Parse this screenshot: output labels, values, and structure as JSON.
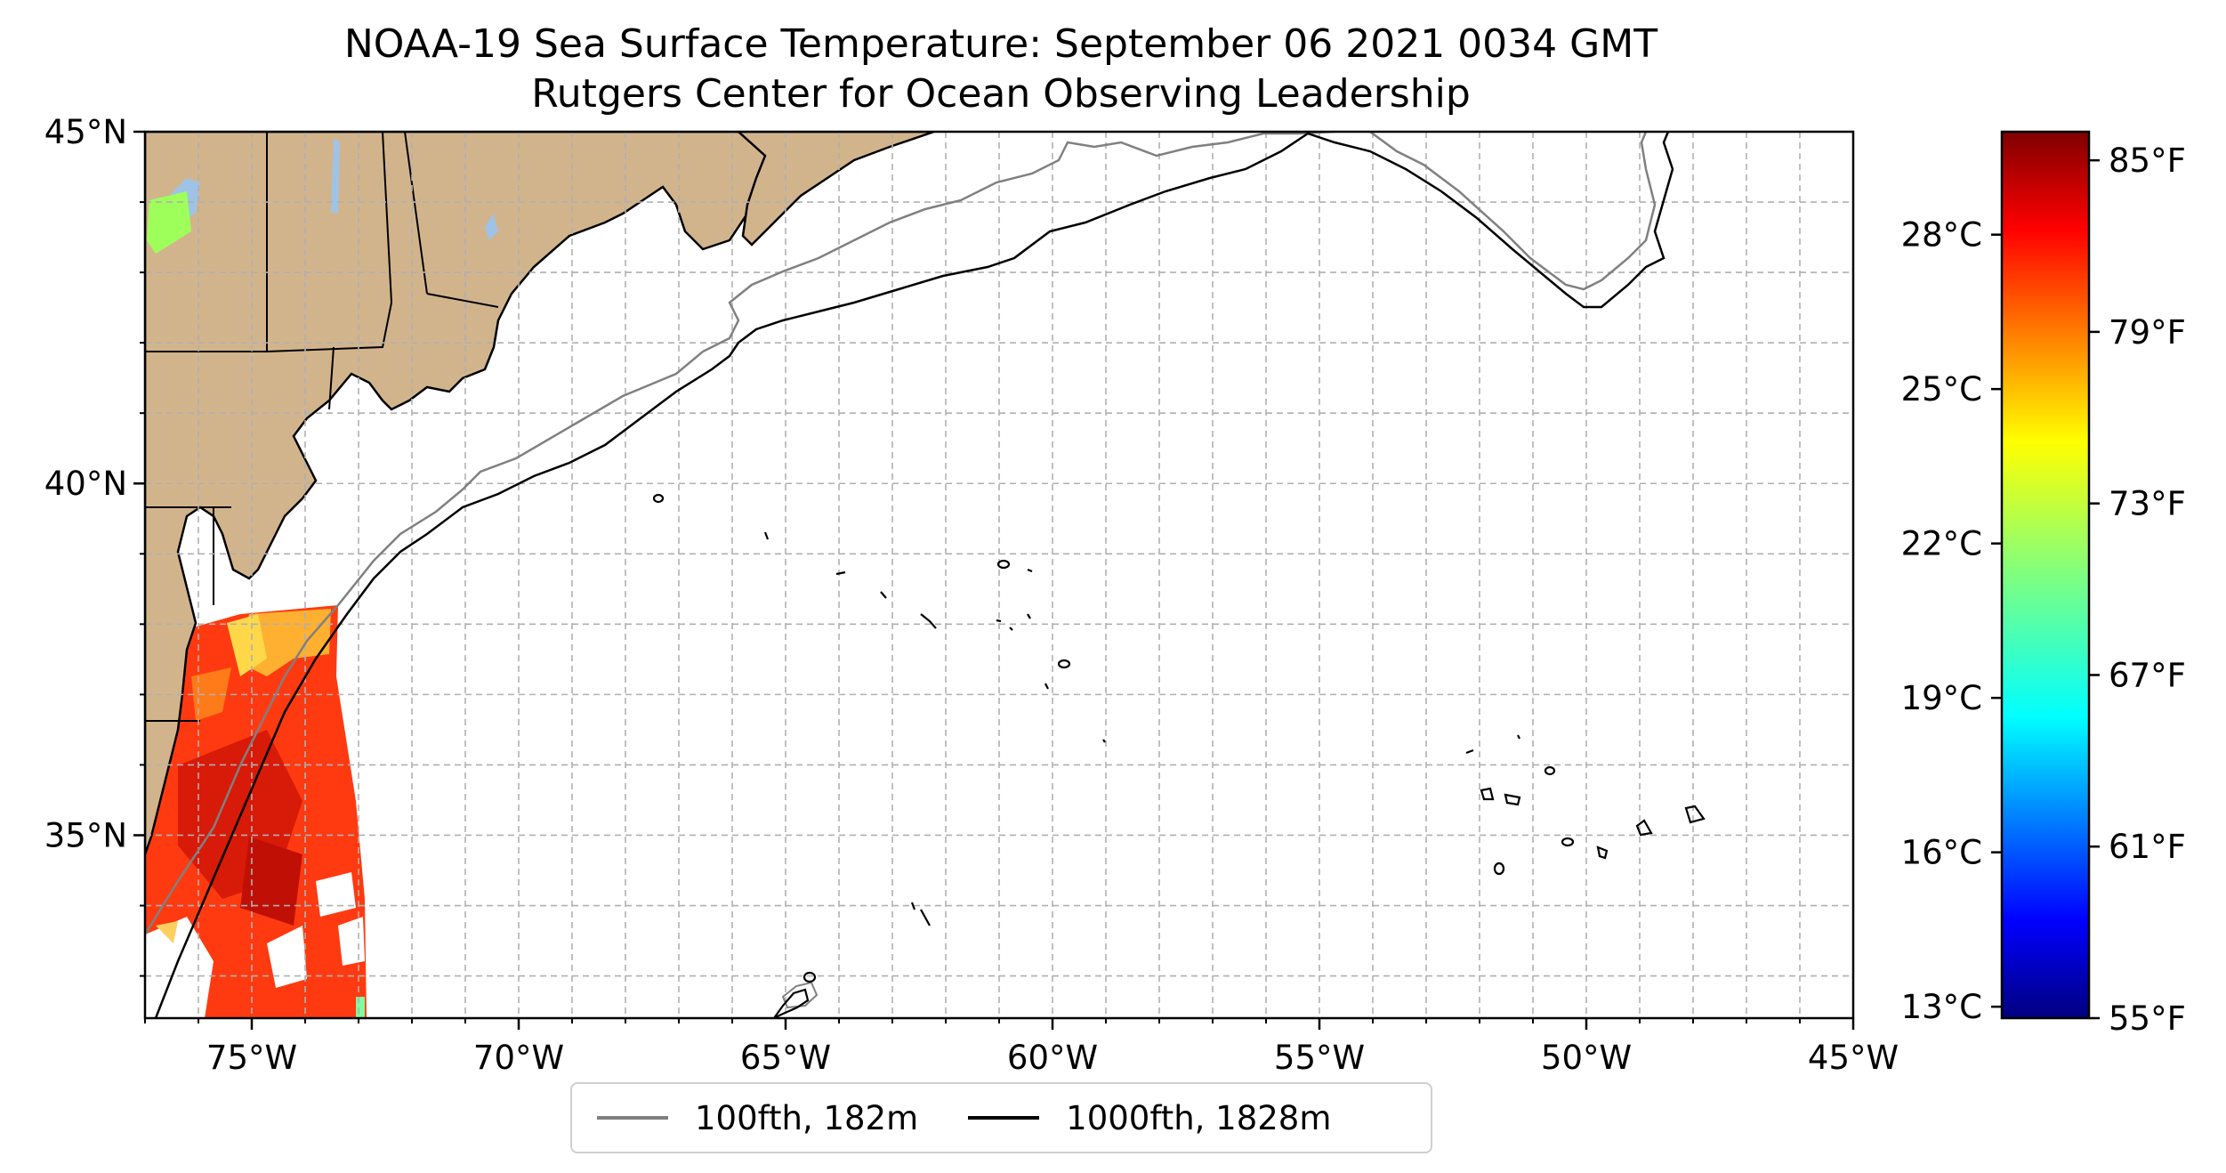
{
  "title": {
    "line1": "NOAA-19 Sea Surface Temperature: September 06 2021 0034 GMT",
    "line2": "Rutgers Center for Ocean Observing Leadership"
  },
  "map": {
    "lon_range": [
      -77,
      -45
    ],
    "lat_range": [
      32.4,
      45
    ],
    "x_ticks": [
      {
        "lon": -75,
        "label": "75°W"
      },
      {
        "lon": -70,
        "label": "70°W"
      },
      {
        "lon": -65,
        "label": "65°W"
      },
      {
        "lon": -60,
        "label": "60°W"
      },
      {
        "lon": -55,
        "label": "55°W"
      },
      {
        "lon": -50,
        "label": "50°W"
      },
      {
        "lon": -45,
        "label": "45°W"
      }
    ],
    "y_ticks": [
      {
        "lat": 45,
        "label": "45°N"
      },
      {
        "lat": 40,
        "label": "40°N"
      },
      {
        "lat": 35,
        "label": "35°N"
      }
    ],
    "gridlines": "dashed, 1° spacing",
    "land_color": "#d2b48c",
    "lake_color": "#9ec3e6",
    "ocean_color": "#ffffff"
  },
  "legend": {
    "items": [
      {
        "label": "100fth, 182m",
        "color": "#808080"
      },
      {
        "label": "1000fth, 1828m",
        "color": "#000000"
      }
    ]
  },
  "colorbar": {
    "colormap": "jet",
    "fahrenheit_range": [
      55,
      86
    ],
    "fahrenheit_ticks": [
      {
        "value": 85,
        "label": "85°F"
      },
      {
        "value": 79,
        "label": "79°F"
      },
      {
        "value": 73,
        "label": "73°F"
      },
      {
        "value": 67,
        "label": "67°F"
      },
      {
        "value": 61,
        "label": "61°F"
      },
      {
        "value": 55,
        "label": "55°F"
      }
    ],
    "celsius_ticks": [
      {
        "value": 28,
        "label": "28°C"
      },
      {
        "value": 25,
        "label": "25°C"
      },
      {
        "value": 22,
        "label": "22°C"
      },
      {
        "value": 19,
        "label": "19°C"
      },
      {
        "value": 16,
        "label": "16°C"
      },
      {
        "value": 13,
        "label": "13°C"
      }
    ]
  }
}
